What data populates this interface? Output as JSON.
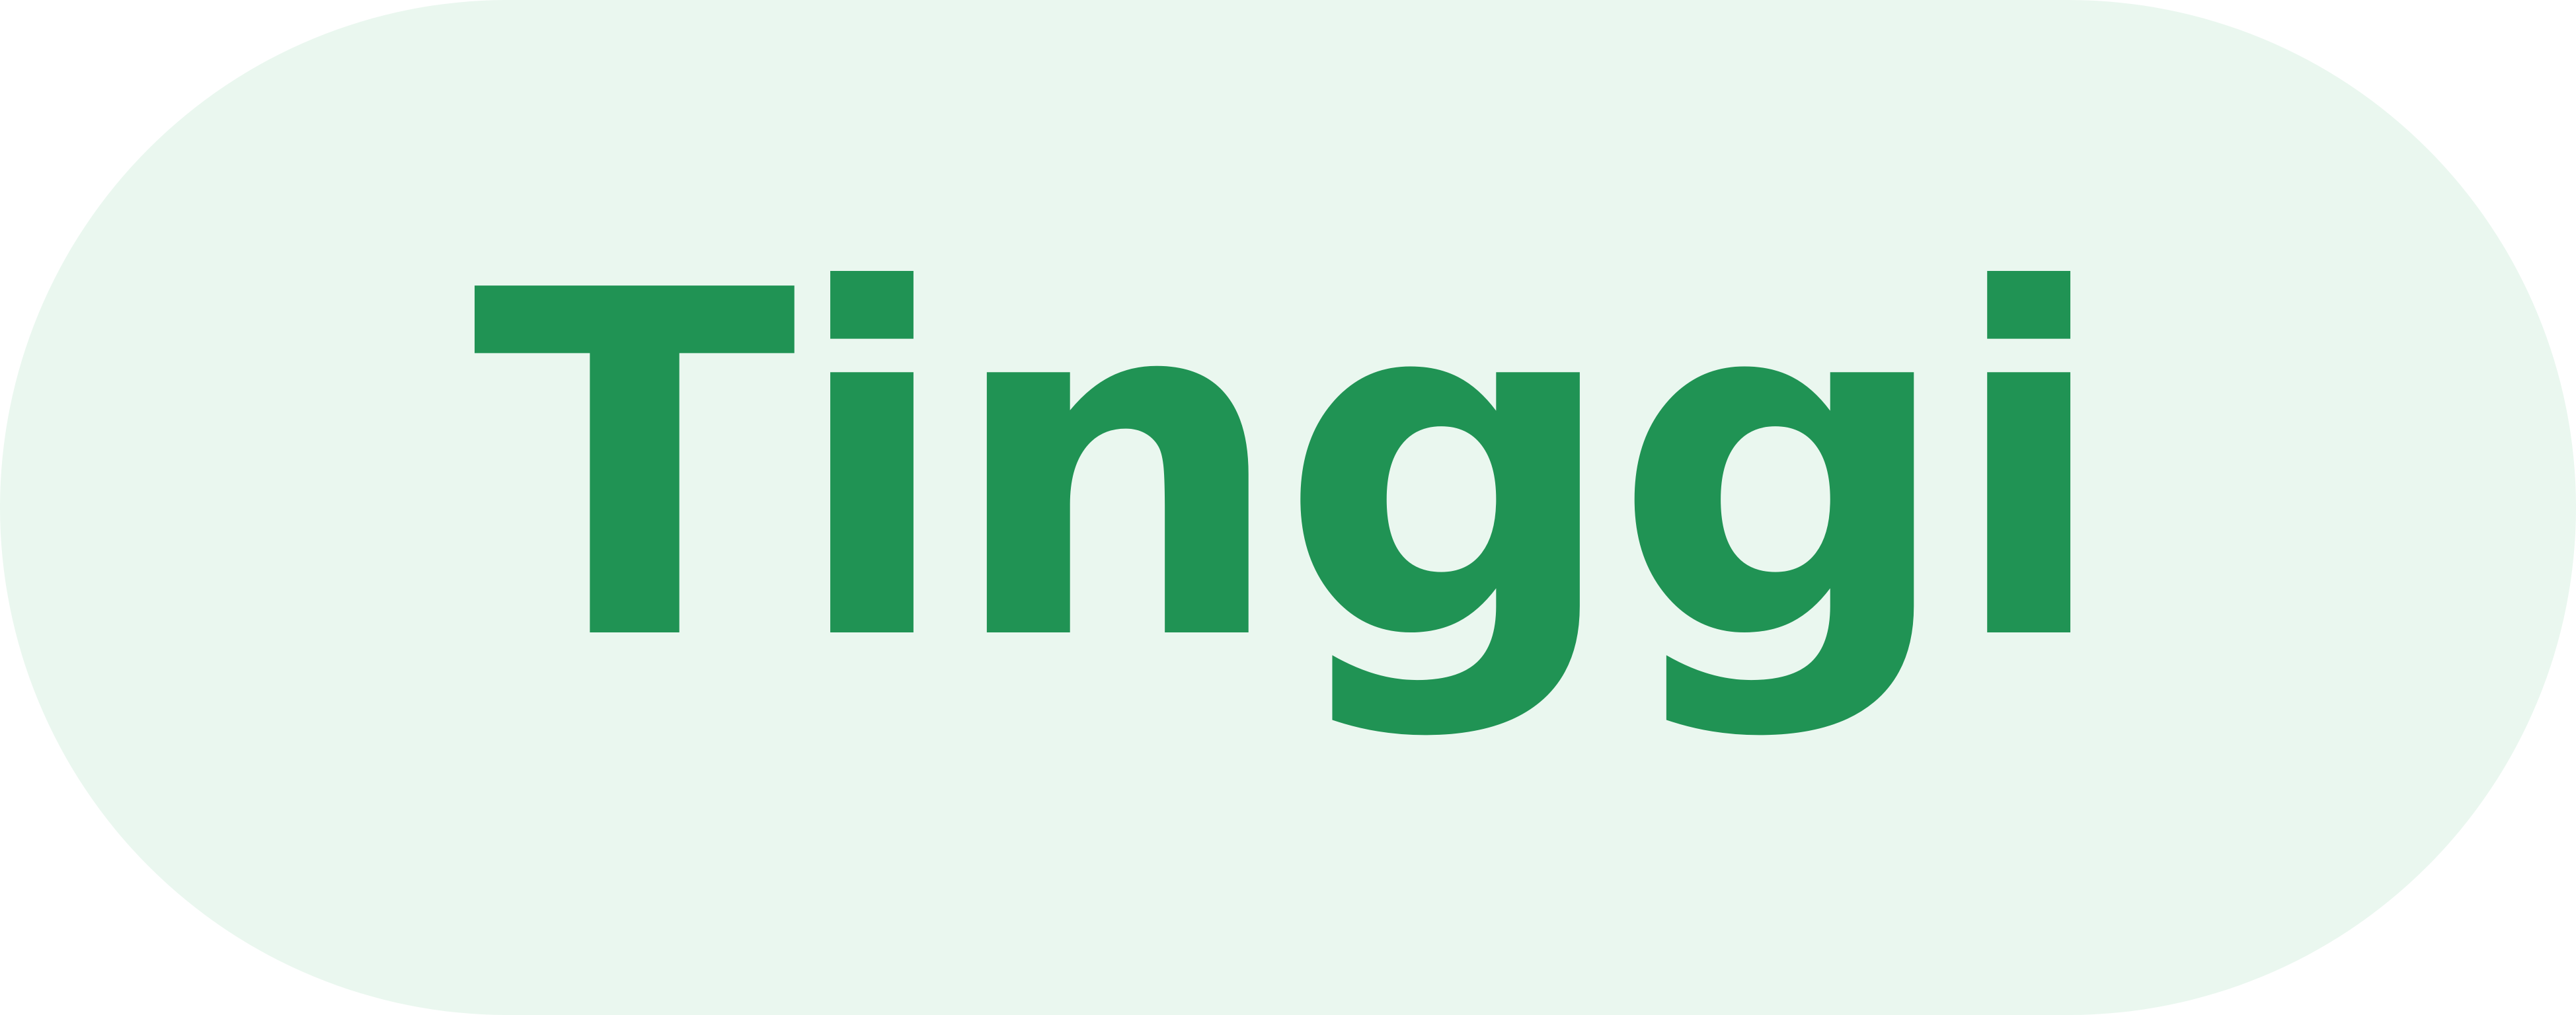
{
  "badge": {
    "label": "Tinggi",
    "background_color": "#eaf7ef",
    "text_color": "#209354"
  }
}
